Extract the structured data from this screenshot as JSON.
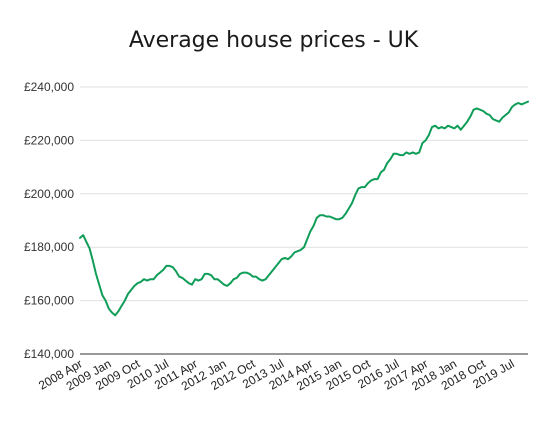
{
  "chart_data": {
    "type": "line",
    "title": "Average house prices - UK",
    "xlabel": "",
    "ylabel": "",
    "ylim": [
      140000,
      240000
    ],
    "y_ticks": [
      140000,
      160000,
      180000,
      200000,
      220000,
      240000
    ],
    "y_tick_labels": [
      "£140,000",
      "£160,000",
      "£180,000",
      "£200,000",
      "£220,000",
      "£240,000"
    ],
    "x_tick_labels": [
      "2008 Apr",
      "2009 Jan",
      "2009 Oct",
      "2010 Jul",
      "2011 Apr",
      "2012 Jan",
      "2012 Oct",
      "2013 Jul",
      "2014 Apr",
      "2015 Jan",
      "2015 Oct",
      "2016 Jul",
      "2017 Apr",
      "2018 Jan",
      "2018 Oct",
      "2019 Jul"
    ],
    "grid": true,
    "legend": "none",
    "line_color": "#0f9d58",
    "series": [
      {
        "x": [
          "2008-03",
          "2008-04",
          "2008-05",
          "2008-06",
          "2008-07",
          "2008-08",
          "2008-09",
          "2008-10",
          "2008-11",
          "2008-12",
          "2009-01",
          "2009-02",
          "2009-03",
          "2009-04",
          "2009-05",
          "2009-06",
          "2009-07",
          "2009-08",
          "2009-09",
          "2009-10",
          "2009-11",
          "2009-12",
          "2010-01",
          "2010-02",
          "2010-03",
          "2010-04",
          "2010-05",
          "2010-06",
          "2010-07",
          "2010-08",
          "2010-09",
          "2010-10",
          "2010-11",
          "2010-12",
          "2011-01",
          "2011-02",
          "2011-03",
          "2011-04",
          "2011-05",
          "2011-06",
          "2011-07",
          "2011-08",
          "2011-09",
          "2011-10",
          "2011-11",
          "2011-12",
          "2012-01",
          "2012-02",
          "2012-03",
          "2012-04",
          "2012-05",
          "2012-06",
          "2012-07",
          "2012-08",
          "2012-09",
          "2012-10",
          "2012-11",
          "2012-12",
          "2013-01",
          "2013-02",
          "2013-03",
          "2013-04",
          "2013-05",
          "2013-06",
          "2013-07",
          "2013-08",
          "2013-09",
          "2013-10",
          "2013-11",
          "2013-12",
          "2014-01",
          "2014-02",
          "2014-03",
          "2014-04",
          "2014-05",
          "2014-06",
          "2014-07",
          "2014-08",
          "2014-09",
          "2014-10",
          "2014-11",
          "2014-12",
          "2015-01",
          "2015-02",
          "2015-03",
          "2015-04",
          "2015-05",
          "2015-06",
          "2015-07",
          "2015-08",
          "2015-09",
          "2015-10",
          "2015-11",
          "2015-12",
          "2016-01",
          "2016-02",
          "2016-03",
          "2016-04",
          "2016-05",
          "2016-06",
          "2016-07",
          "2016-08",
          "2016-09",
          "2016-10",
          "2016-11",
          "2016-12",
          "2017-01",
          "2017-02",
          "2017-03",
          "2017-04",
          "2017-05",
          "2017-06",
          "2017-07",
          "2017-08",
          "2017-09",
          "2017-10",
          "2017-11",
          "2017-12",
          "2018-01",
          "2018-02",
          "2018-03",
          "2018-04",
          "2018-05",
          "2018-06",
          "2018-07",
          "2018-08",
          "2018-09",
          "2018-10",
          "2018-11",
          "2018-12",
          "2019-01",
          "2019-02",
          "2019-03",
          "2019-04",
          "2019-05",
          "2019-06",
          "2019-07",
          "2019-08",
          "2019-09",
          "2019-10",
          "2019-11"
        ],
        "y": [
          183500,
          184500,
          182000,
          179500,
          175000,
          170000,
          166000,
          162000,
          160000,
          157000,
          155500,
          154500,
          156000,
          158000,
          160000,
          162500,
          164000,
          165500,
          166500,
          167000,
          168000,
          167500,
          168000,
          168000,
          169500,
          170500,
          171500,
          173000,
          173000,
          172500,
          171000,
          169000,
          168500,
          167500,
          166500,
          166000,
          168000,
          167500,
          168000,
          170000,
          170000,
          169500,
          168000,
          168000,
          167000,
          166000,
          165500,
          166500,
          168000,
          168500,
          170000,
          170500,
          170500,
          170000,
          169000,
          169000,
          168000,
          167500,
          168000,
          169500,
          171000,
          172500,
          174000,
          175500,
          176000,
          175500,
          176500,
          178000,
          178500,
          179000,
          180000,
          183000,
          186000,
          188000,
          191000,
          192000,
          192000,
          191500,
          191500,
          191000,
          190500,
          190500,
          191000,
          192500,
          194500,
          196500,
          199500,
          202000,
          202500,
          202500,
          204000,
          205000,
          205500,
          205500,
          208000,
          209000,
          211500,
          213000,
          215000,
          215000,
          214500,
          214500,
          215500,
          215000,
          215500,
          215000,
          215500,
          219000,
          220000,
          222000,
          225000,
          225500,
          224500,
          225000,
          224500,
          225500,
          225000,
          224500,
          225500,
          224000,
          225500,
          227000,
          229000,
          231500,
          232000,
          231500,
          231000,
          230000,
          229500,
          228000,
          227500,
          227000,
          228500,
          229500,
          230500,
          232500,
          233500,
          234000,
          233500,
          234000,
          234500
        ]
      }
    ]
  }
}
